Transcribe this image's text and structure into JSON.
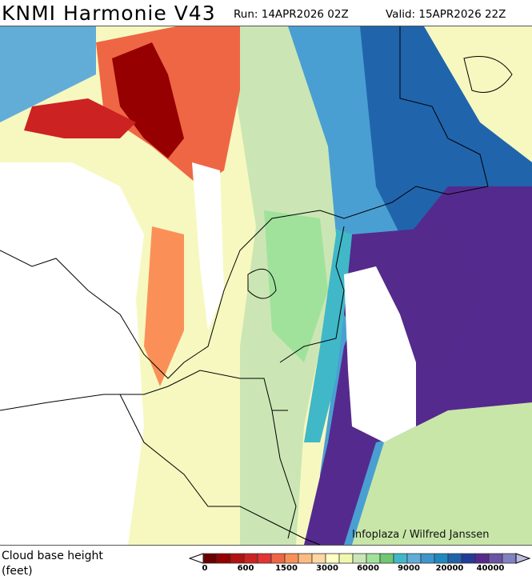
{
  "header": {
    "title": "KNMI Harmonie V43",
    "run": "Run: 14APR2026 02Z",
    "valid": "Valid: 15APR2026 22Z"
  },
  "legend": {
    "line1": "Cloud base height",
    "line2": "(feet)"
  },
  "credit": "Infoplaza / Wilfred Janssen",
  "colorbar": {
    "colors": [
      "#6b0000",
      "#960000",
      "#b21212",
      "#cc2222",
      "#e23434",
      "#ef6644",
      "#fa9058",
      "#fcbc80",
      "#fdd8a2",
      "#ffffc4",
      "#f0f8b0",
      "#cbe6b4",
      "#a0e29c",
      "#70c672",
      "#40b8c8",
      "#62acd8",
      "#3f94cc",
      "#1f88c0",
      "#2062a8",
      "#243a98",
      "#542a8c",
      "#6a52a4",
      "#8282c0"
    ],
    "under_color": "#ffffff",
    "over_color": "#bcbce0",
    "labels": [
      {
        "text": "0",
        "index": 0
      },
      {
        "text": "600",
        "index": 3
      },
      {
        "text": "1500",
        "index": 6
      },
      {
        "text": "3000",
        "index": 9
      },
      {
        "text": "6000",
        "index": 12
      },
      {
        "text": "9000",
        "index": 15
      },
      {
        "text": "20000",
        "index": 18
      },
      {
        "text": "40000",
        "index": 21
      }
    ]
  }
}
